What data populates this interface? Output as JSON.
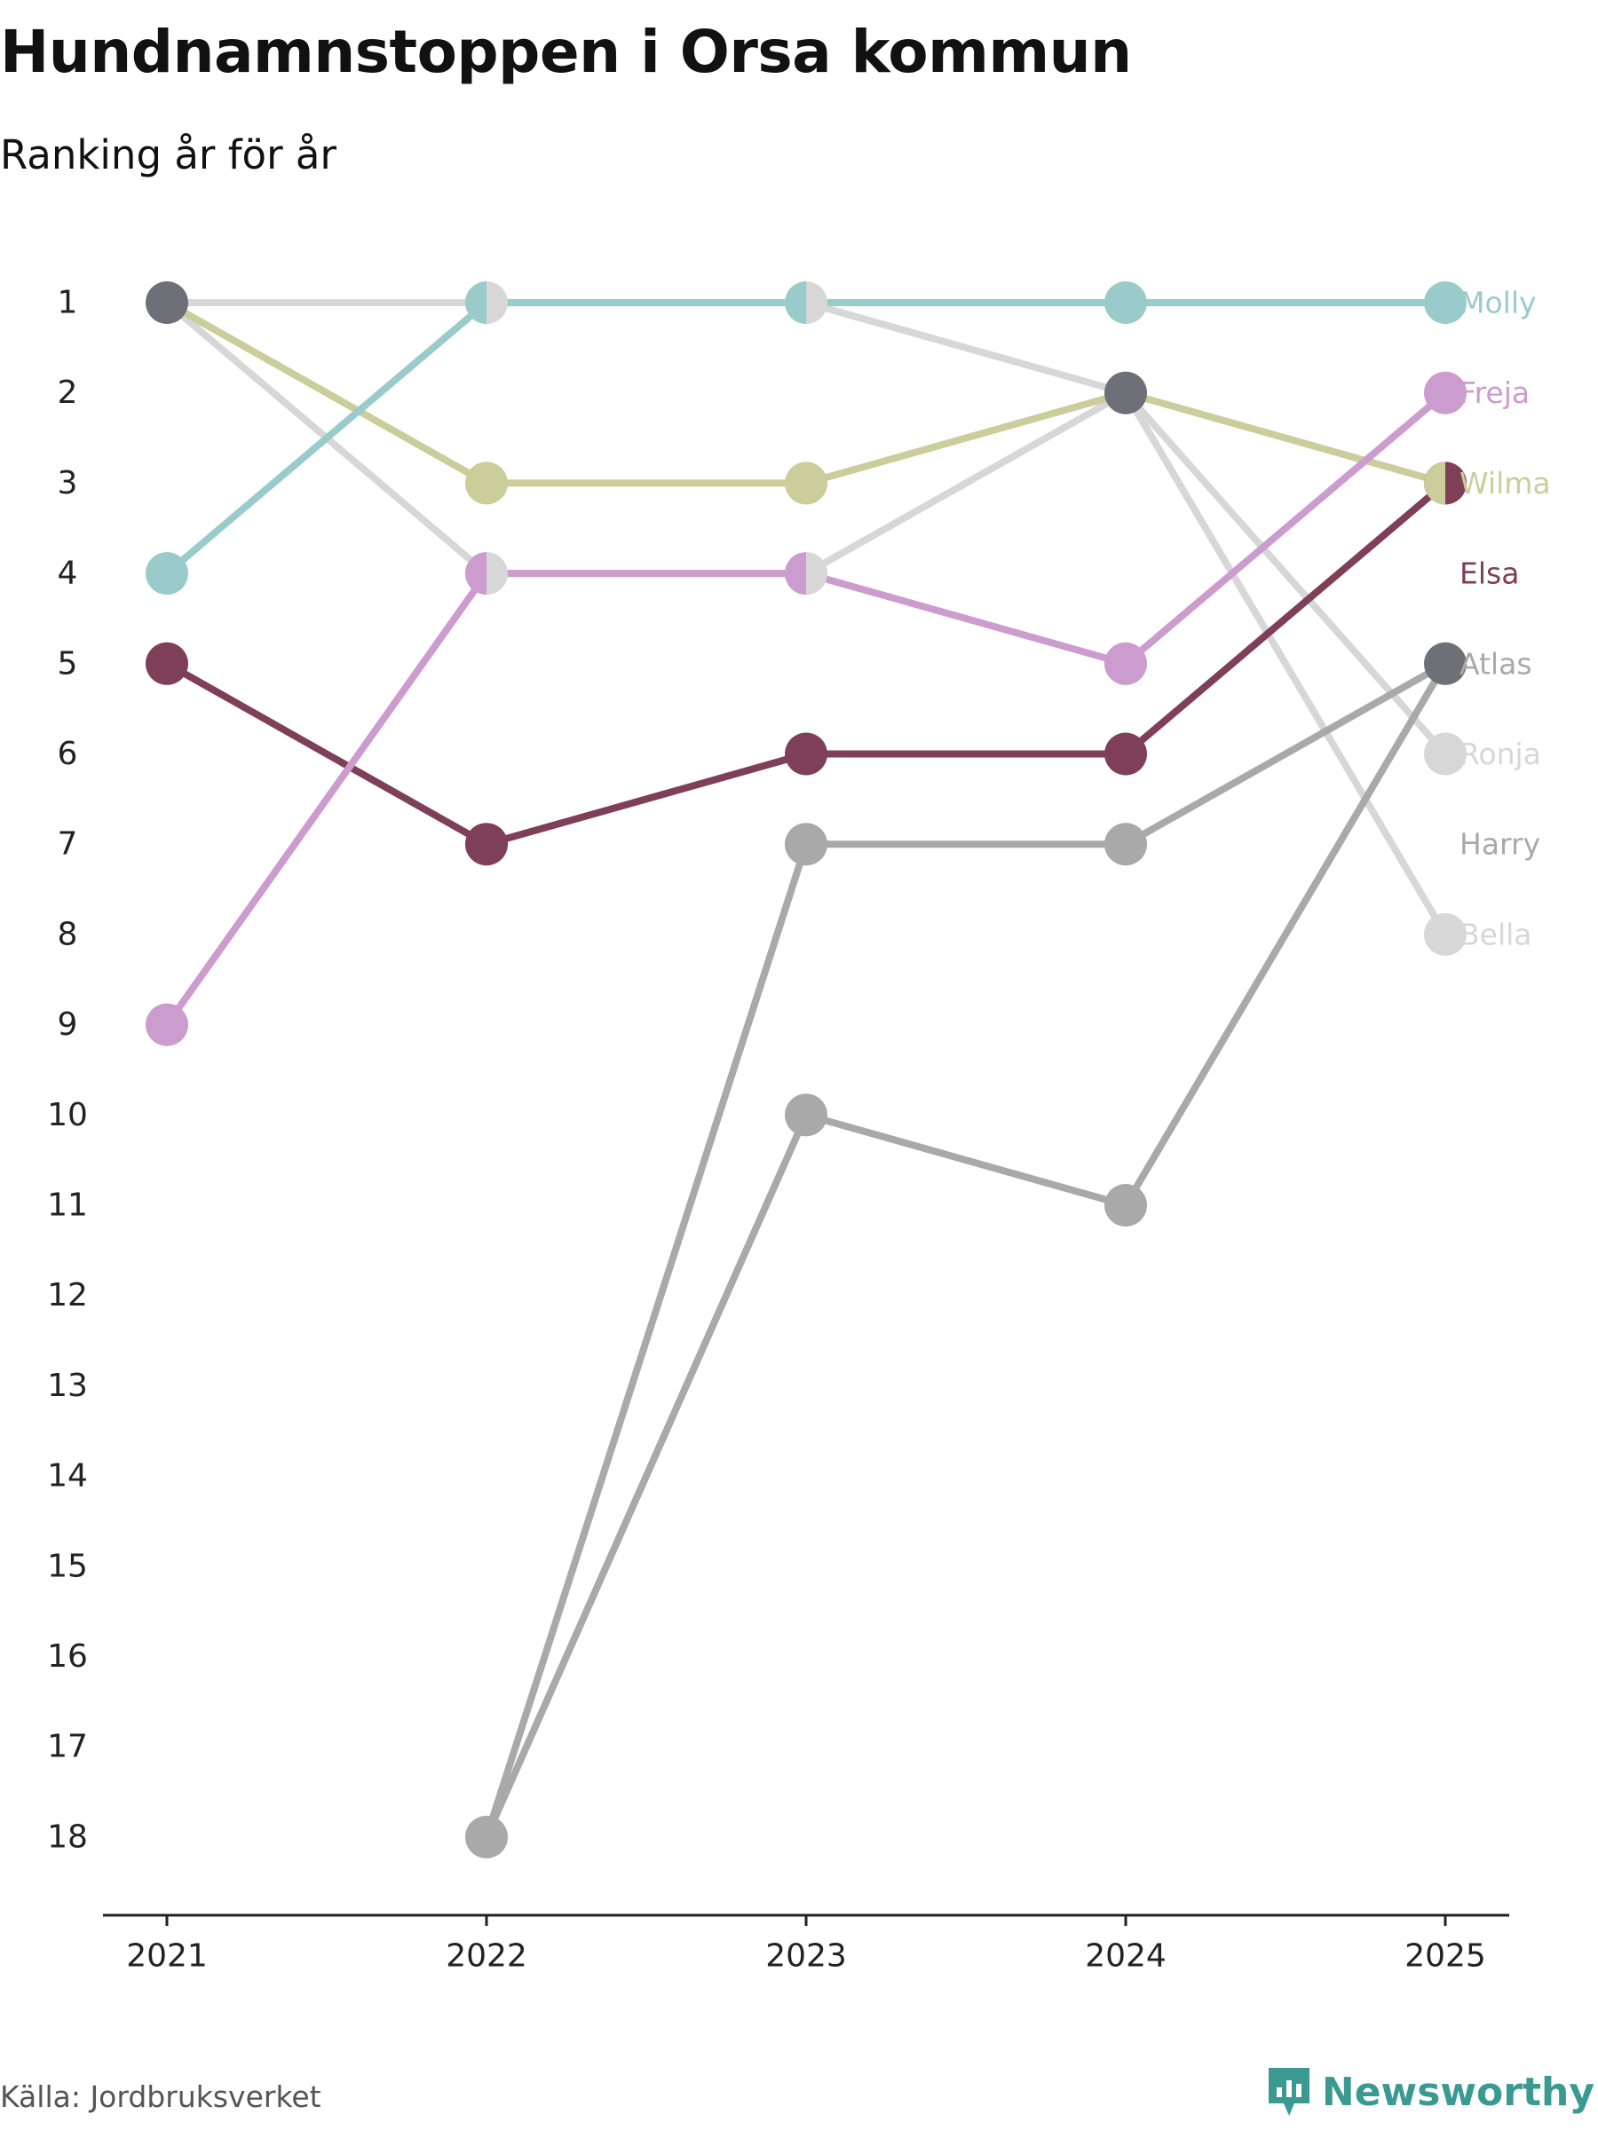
{
  "title": "Hundnamnstoppen i Orsa kommun",
  "subtitle": "Ranking år för år",
  "source": "Källa: Jordbruksverket",
  "brand": "Newsworthy",
  "brand_icon": "newsworthy-logo-icon",
  "brand_color": "#3a9a92",
  "chart_data": {
    "type": "line",
    "chart_subtype": "bump",
    "title": "Hundnamnstoppen i Orsa kommun",
    "subtitle": "Ranking år för år",
    "xlabel": "",
    "ylabel": "",
    "x": [
      "2021",
      "2022",
      "2023",
      "2024",
      "2025"
    ],
    "y_ticks": [
      "1",
      "2",
      "3",
      "4",
      "5",
      "6",
      "7",
      "8",
      "9",
      "10",
      "11",
      "12",
      "13",
      "14",
      "15",
      "16",
      "17",
      "18"
    ],
    "ylim": [
      1,
      18
    ],
    "y_inverted": true,
    "grid": false,
    "series": [
      {
        "name": "Ronja",
        "color": "#d7d7d7",
        "values": [
          1,
          4,
          4,
          2,
          6
        ]
      },
      {
        "name": "Bella",
        "color": "#d7d7d7",
        "values": [
          1,
          1,
          1,
          2,
          8
        ]
      },
      {
        "name": "Harry",
        "color": "#a9a9a9",
        "values": [
          null,
          18,
          7,
          7,
          5
        ]
      },
      {
        "name": "Atlas",
        "color": "#a9a9a9",
        "values": [
          null,
          18,
          10,
          11,
          5
        ]
      },
      {
        "name": "Elsa",
        "color": "#7e3f57",
        "values": [
          5,
          7,
          6,
          6,
          3
        ]
      },
      {
        "name": "Wilma",
        "color": "#cbcd9a",
        "values": [
          1,
          3,
          3,
          2,
          3
        ]
      },
      {
        "name": "Freja",
        "color": "#cc9ccf",
        "values": [
          9,
          4,
          4,
          5,
          2
        ]
      },
      {
        "name": "Molly",
        "color": "#9acbcb",
        "values": [
          4,
          1,
          1,
          1,
          1
        ]
      }
    ],
    "shared_point_color": "#6f6f78",
    "shared_points": [
      {
        "x": "2021",
        "rank": 1
      },
      {
        "x": "2024",
        "rank": 2
      },
      {
        "x": "2025",
        "rank": 5
      }
    ],
    "end_labels": [
      {
        "name": "Molly",
        "rank": 1,
        "color": "#9acbcb"
      },
      {
        "name": "Freja",
        "rank": 2,
        "color": "#cc9ccf"
      },
      {
        "name": "Wilma",
        "rank": 3,
        "color": "#cbcd9a"
      },
      {
        "name": "Elsa",
        "rank": 4,
        "color": "#7e3f57"
      },
      {
        "name": "Atlas",
        "rank": 5,
        "color": "#a9a9a9"
      },
      {
        "name": "Ronja",
        "rank": 6,
        "color": "#d7d7d7"
      },
      {
        "name": "Harry",
        "rank": 7,
        "color": "#a9a9a9"
      },
      {
        "name": "Bella",
        "rank": 8,
        "color": "#d7d7d7"
      }
    ]
  }
}
